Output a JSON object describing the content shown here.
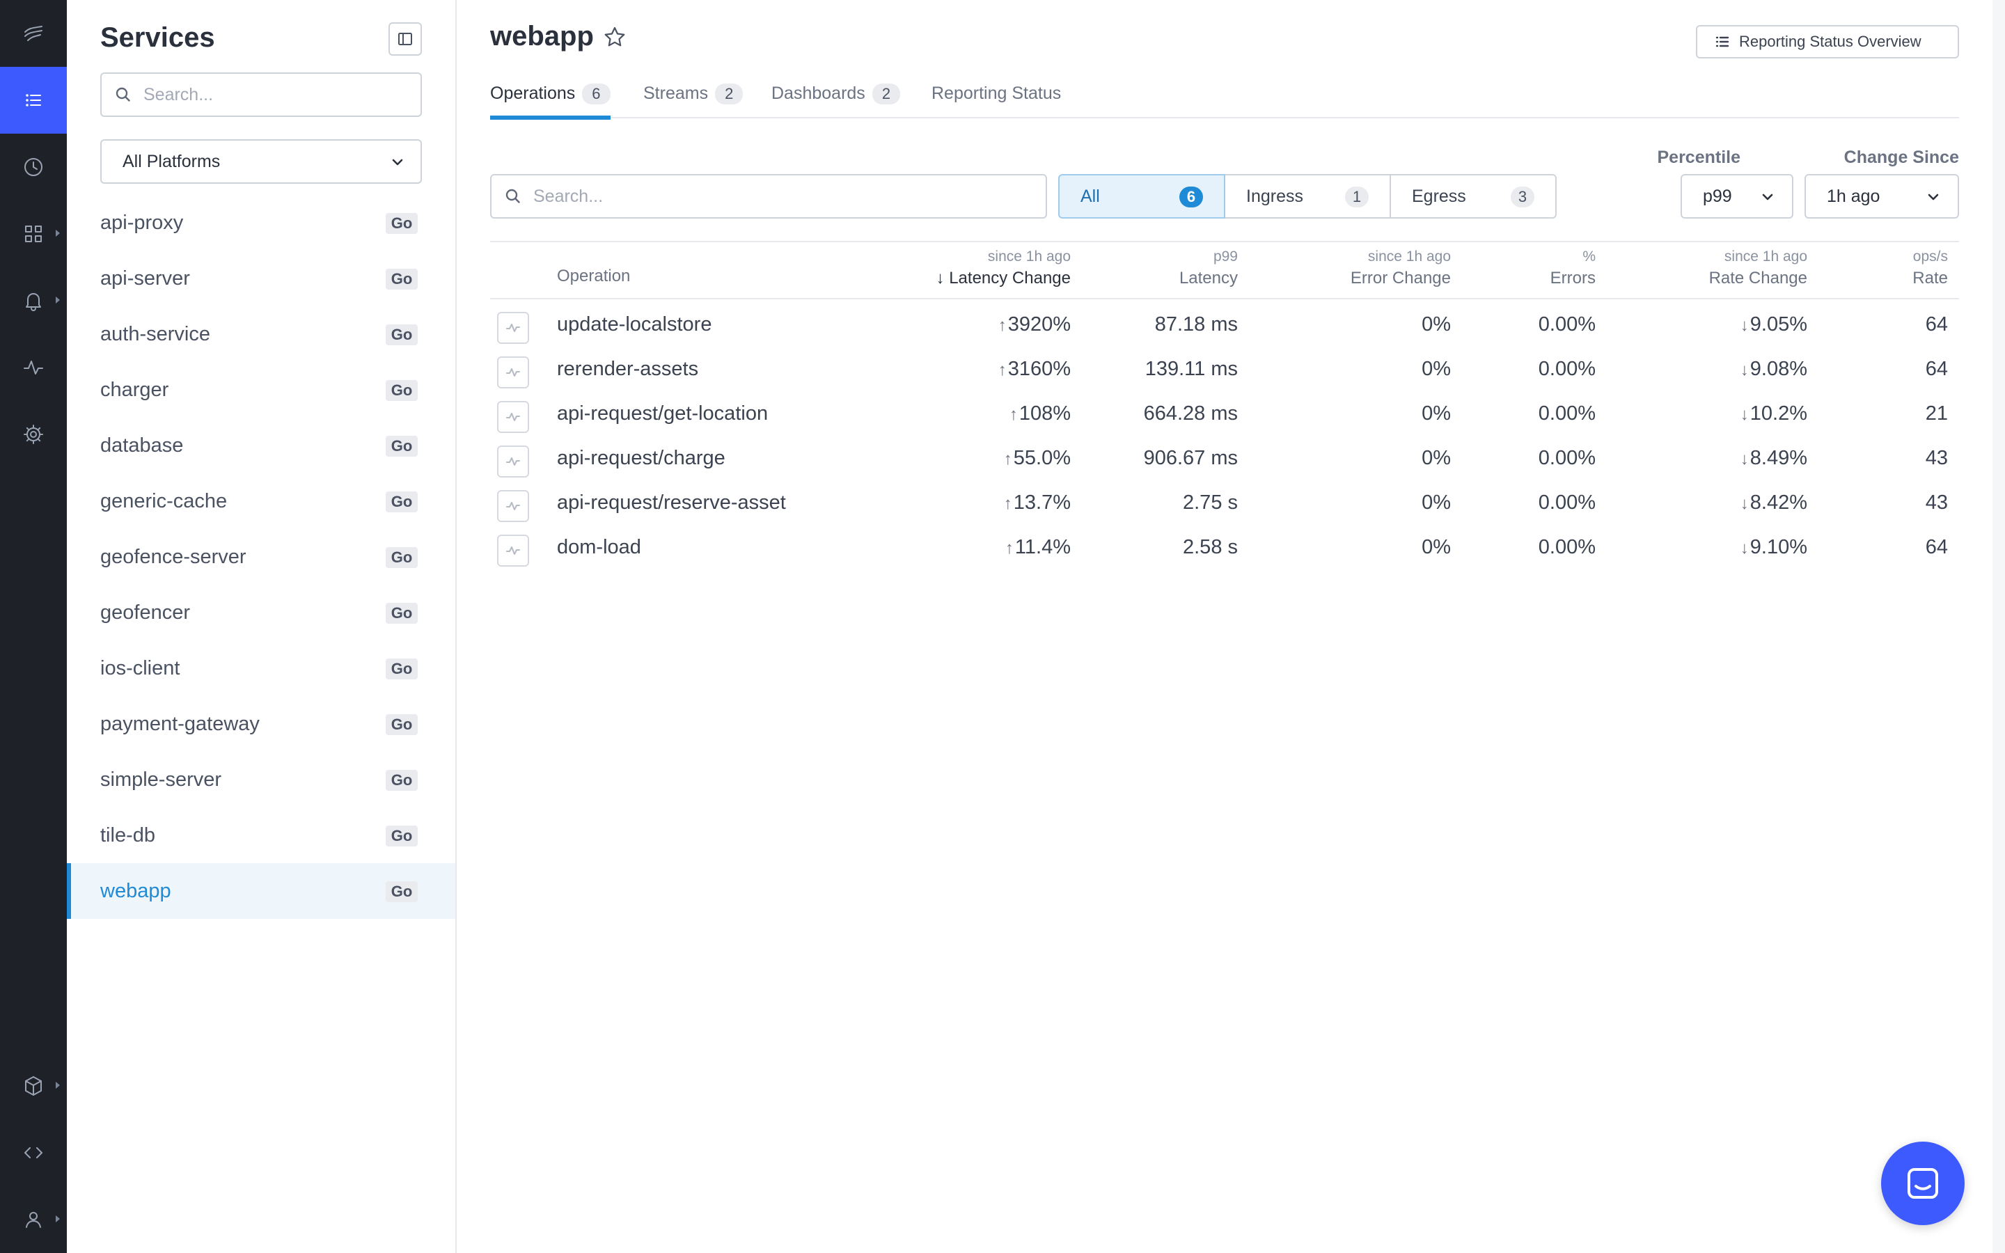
{
  "sidebar": {
    "title": "Services",
    "search_placeholder": "Search...",
    "platform_filter": "All Platforms",
    "services": [
      {
        "name": "api-proxy",
        "lang": "Go"
      },
      {
        "name": "api-server",
        "lang": "Go"
      },
      {
        "name": "auth-service",
        "lang": "Go"
      },
      {
        "name": "charger",
        "lang": "Go"
      },
      {
        "name": "database",
        "lang": "Go"
      },
      {
        "name": "generic-cache",
        "lang": "Go"
      },
      {
        "name": "geofence-server",
        "lang": "Go"
      },
      {
        "name": "geofencer",
        "lang": "Go"
      },
      {
        "name": "ios-client",
        "lang": "Go"
      },
      {
        "name": "payment-gateway",
        "lang": "Go"
      },
      {
        "name": "simple-server",
        "lang": "Go"
      },
      {
        "name": "tile-db",
        "lang": "Go"
      },
      {
        "name": "webapp",
        "lang": "Go"
      }
    ]
  },
  "header": {
    "title": "webapp",
    "report_button": "Reporting Status Overview"
  },
  "tabs": [
    {
      "label": "Operations",
      "count": "6"
    },
    {
      "label": "Streams",
      "count": "2"
    },
    {
      "label": "Dashboards",
      "count": "2"
    },
    {
      "label": "Reporting Status",
      "count": ""
    }
  ],
  "filters": {
    "search_placeholder": "Search...",
    "segments": [
      {
        "label": "All",
        "count": "6"
      },
      {
        "label": "Ingress",
        "count": "1"
      },
      {
        "label": "Egress",
        "count": "3"
      }
    ],
    "percentile_label": "Percentile",
    "percentile_value": "p99",
    "change_since_label": "Change Since",
    "change_since_value": "1h ago"
  },
  "table": {
    "columns": {
      "operation": "Operation",
      "latency_change_sub": "since 1h ago",
      "latency_change": "Latency Change",
      "latency_sub": "p99",
      "latency": "Latency",
      "error_change_sub": "since 1h ago",
      "error_change": "Error Change",
      "errors_sub": "%",
      "errors": "Errors",
      "rate_change_sub": "since 1h ago",
      "rate_change": "Rate Change",
      "rate_sub": "ops/s",
      "rate": "Rate"
    },
    "rows": [
      {
        "operation": "update-localstore",
        "latency_change": "3920%",
        "latency": "87.18 ms",
        "error_change": "0%",
        "errors": "0.00%",
        "rate_change": "9.05%",
        "rate": "64"
      },
      {
        "operation": "rerender-assets",
        "latency_change": "3160%",
        "latency": "139.11 ms",
        "error_change": "0%",
        "errors": "0.00%",
        "rate_change": "9.08%",
        "rate": "64"
      },
      {
        "operation": "api-request/get-location",
        "latency_change": "108%",
        "latency": "664.28 ms",
        "error_change": "0%",
        "errors": "0.00%",
        "rate_change": "10.2%",
        "rate": "21"
      },
      {
        "operation": "api-request/charge",
        "latency_change": "55.0%",
        "latency": "906.67 ms",
        "error_change": "0%",
        "errors": "0.00%",
        "rate_change": "8.49%",
        "rate": "43"
      },
      {
        "operation": "api-request/reserve-asset",
        "latency_change": "13.7%",
        "latency": "2.75 s",
        "error_change": "0%",
        "errors": "0.00%",
        "rate_change": "8.42%",
        "rate": "43"
      },
      {
        "operation": "dom-load",
        "latency_change": "11.4%",
        "latency": "2.58 s",
        "error_change": "0%",
        "errors": "0.00%",
        "rate_change": "9.10%",
        "rate": "64"
      }
    ]
  },
  "colors": {
    "rail": "#1e2128",
    "accent": "#3d5afe",
    "active_blue": "#1f8ad6"
  }
}
